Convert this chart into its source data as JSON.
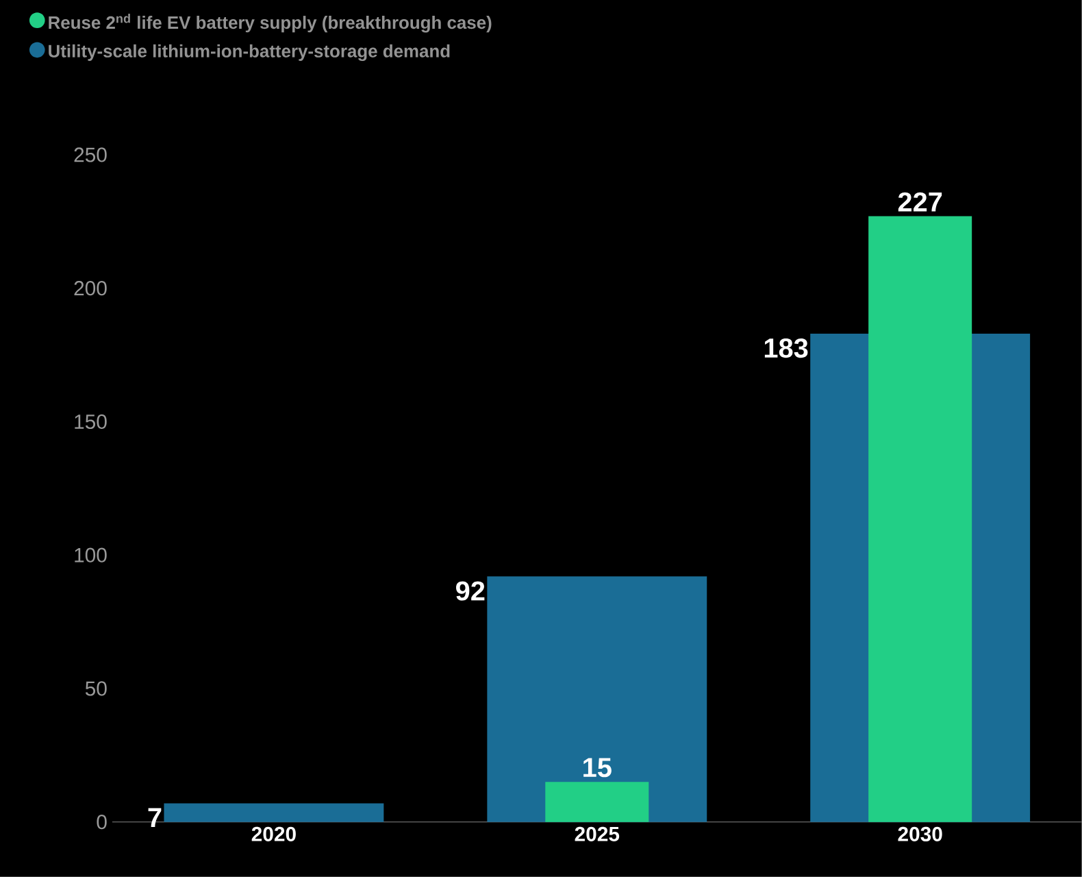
{
  "chart_data": {
    "type": "bar",
    "categories": [
      "2020",
      "2025",
      "2030"
    ],
    "series": [
      {
        "name": "Reuse 2$^{nd}$ life EV battery supply (breakthrough case)",
        "color": "#22cf86",
        "values": [
          null,
          15,
          227
        ]
      },
      {
        "name": "Utility-scale lithium-ion-battery-storage demand",
        "color": "#1a6d96",
        "values": [
          7,
          92,
          183
        ]
      }
    ],
    "ylim": [
      0,
      250
    ],
    "yticks": [
      0,
      50,
      100,
      150,
      200,
      250
    ],
    "grid": false,
    "legend": "top left",
    "data_labels": true
  }
}
